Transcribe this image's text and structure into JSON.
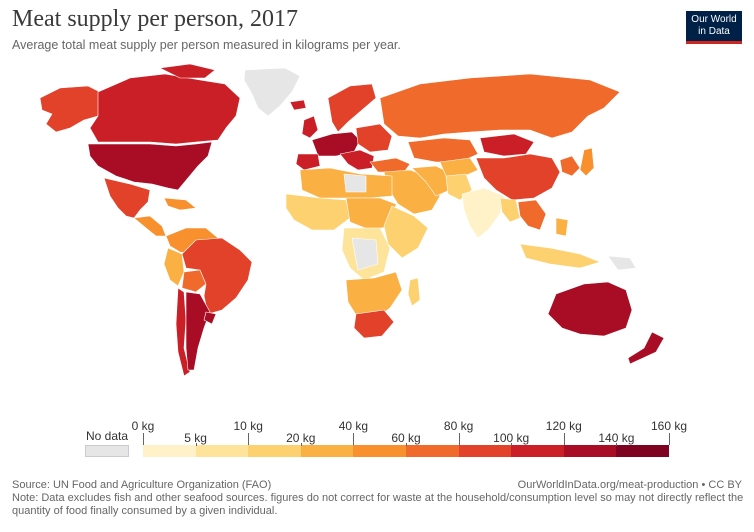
{
  "header": {
    "title": "Meat supply per person, 2017",
    "subtitle": "Average total meat supply per person measured in kilograms per year."
  },
  "logo": {
    "line1": "Our World",
    "line2": "in Data"
  },
  "legend": {
    "no_data_label": "No data",
    "bins": [
      {
        "from": 0,
        "to": 5,
        "color": "#fff2c8"
      },
      {
        "from": 5,
        "to": 10,
        "color": "#fee49a"
      },
      {
        "from": 10,
        "to": 20,
        "color": "#fdd170"
      },
      {
        "from": 20,
        "to": 40,
        "color": "#fbb044"
      },
      {
        "from": 40,
        "to": 60,
        "color": "#f8902d"
      },
      {
        "from": 60,
        "to": 80,
        "color": "#f06a2b"
      },
      {
        "from": 80,
        "to": 100,
        "color": "#e2412a"
      },
      {
        "from": 100,
        "to": 120,
        "color": "#cb1f27"
      },
      {
        "from": 120,
        "to": 140,
        "color": "#a90d25"
      },
      {
        "from": 140,
        "to": 160,
        "color": "#7d0321"
      }
    ],
    "tick_labels_top": [
      "0 kg",
      "10 kg",
      "40 kg",
      "80 kg",
      "120 kg",
      "160 kg"
    ],
    "tick_labels_bottom": [
      "5 kg",
      "20 kg",
      "60 kg",
      "100 kg",
      "140 kg"
    ]
  },
  "colors": {
    "no_data": "#e6e6e6",
    "very_low": "#fff2c8",
    "low": "#fdd170",
    "mid_low": "#fbb044",
    "mid": "#f8902d",
    "mid_high": "#f06a2b",
    "high": "#e2412a",
    "very_high": "#cb1f27",
    "highest": "#a90d25",
    "top": "#7d0321"
  },
  "footer": {
    "source": "Source: UN Food and Agriculture Organization (FAO)",
    "url": "OurWorldInData.org/meat-production • CC BY",
    "note": "Note: Data excludes fish and other seafood sources. figures do not correct for waste at the household/consumption level so may not directly reflect the quantity of food finally consumed by a given individual."
  }
}
